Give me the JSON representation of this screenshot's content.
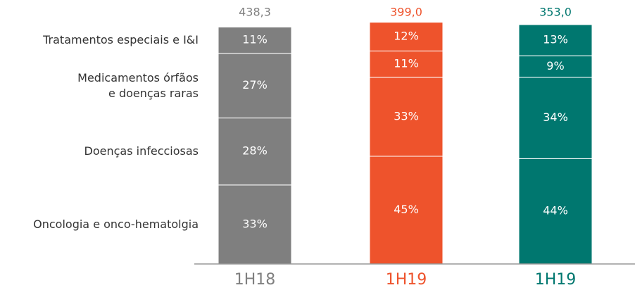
{
  "chart_data": {
    "type": "stacked-bar-100",
    "categories": [
      "1H18",
      "1H19",
      "1H19"
    ],
    "colors": [
      "#7f7f7f",
      "#ee532c",
      "#00776f"
    ],
    "totals": [
      "438,3",
      "399,0",
      "353,0"
    ],
    "ylim": [
      0,
      100
    ],
    "series": [
      {
        "name": "Oncologia e onco-hematolgia",
        "values": [
          33,
          45,
          44
        ],
        "value_labels": [
          "33%",
          "45%",
          "44%"
        ]
      },
      {
        "name": "Doenças infecciosas",
        "values": [
          28,
          33,
          34
        ],
        "value_labels": [
          "28%",
          "33%",
          "34%"
        ]
      },
      {
        "name": "Medicamentos órfãos\ne doenças raras",
        "values": [
          27,
          11,
          9
        ],
        "value_labels": [
          "27%",
          "11%",
          "9%"
        ]
      },
      {
        "name": "Tratamentos especiais e I&I",
        "values": [
          11,
          12,
          13
        ],
        "value_labels": [
          "11%",
          "12%",
          "13%"
        ]
      }
    ]
  }
}
